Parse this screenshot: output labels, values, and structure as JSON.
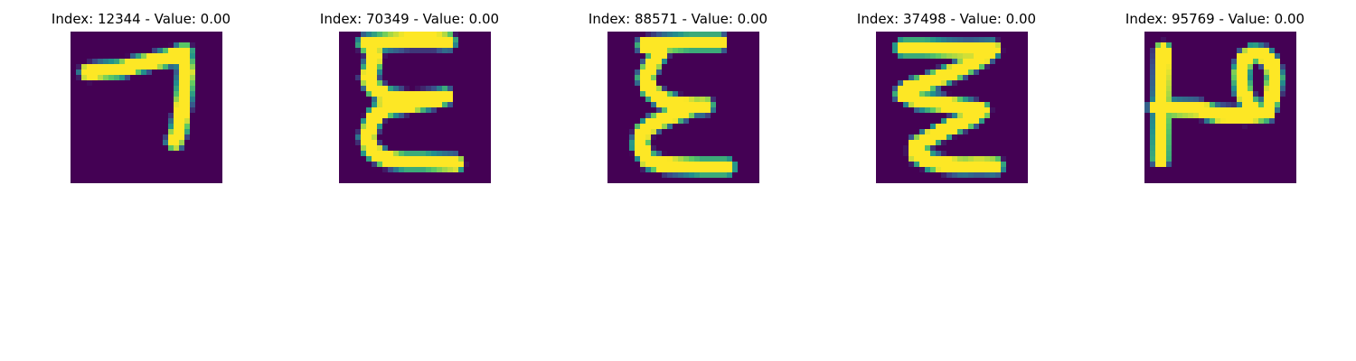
{
  "chart_data": {
    "type": "heatmap",
    "colormap": "viridis",
    "color_range": [
      0,
      1
    ],
    "grid": false,
    "panels": [
      {
        "title": "Index: 12344 - Value: 0.00",
        "index": 12344,
        "value": 0.0,
        "shape": "seven"
      },
      {
        "title": "Index: 70349 - Value: 0.00",
        "index": 70349,
        "value": 0.0,
        "shape": "sigma-a"
      },
      {
        "title": "Index: 88571 - Value: 0.00",
        "index": 88571,
        "value": 0.0,
        "shape": "sigma-b"
      },
      {
        "title": "Index: 37498 - Value: 0.00",
        "index": 37498,
        "value": 0.0,
        "shape": "zigzag"
      },
      {
        "title": "Index: 95769 - Value: 0.00",
        "index": 95769,
        "value": 0.0,
        "shape": "p-rot"
      }
    ]
  }
}
